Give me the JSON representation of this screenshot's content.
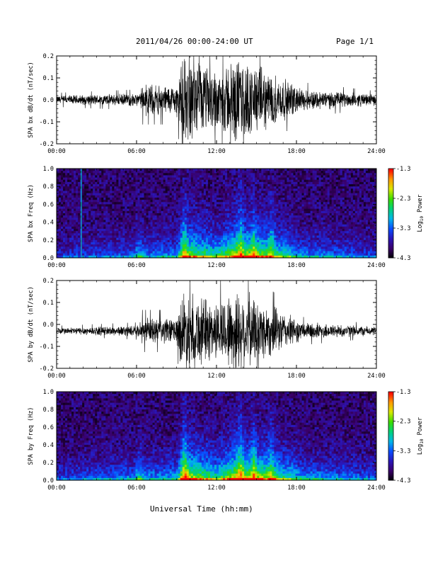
{
  "header": {
    "title": "2011/04/26  00:00-24:00 UT",
    "page_label": "Page 1/1"
  },
  "xlabel": "Universal Time (hh:mm)",
  "colorbar": {
    "label": "Log10 Power",
    "ticks": [
      "-1.3",
      "-2.3",
      "-3.3",
      "-4.3"
    ],
    "range": [
      -4.3,
      -1.3
    ],
    "colors": [
      "#000000",
      "#3a0068",
      "#2a16b8",
      "#0a4cff",
      "#00b6e8",
      "#00d27a",
      "#3cdc00",
      "#d8e800",
      "#ff9800",
      "#ff0000"
    ]
  },
  "chart_data": [
    {
      "type": "line",
      "ylabel": "SPA bx dB/dt (nT/sec)",
      "xlim": [
        "00:00",
        "24:00"
      ],
      "ylim": [
        -0.2,
        0.2
      ],
      "xticks": [
        "00:00",
        "06:00",
        "12:00",
        "18:00",
        "24:00"
      ],
      "yticks": [
        "0.2",
        "0.1",
        "0.0",
        "-0.1",
        "-0.2"
      ],
      "baseline": 0.0,
      "color": "#000000",
      "envelope": {
        "hours": [
          0,
          6.3,
          6.4,
          9,
          9.5,
          12,
          13.5,
          16,
          18.5,
          24
        ],
        "amplitude": [
          0.02,
          0.03,
          0.07,
          0.07,
          0.2,
          0.14,
          0.2,
          0.13,
          0.05,
          0.025
        ]
      }
    },
    {
      "type": "heatmap",
      "ylabel": "SPA bx Freq (Hz)",
      "xlim": [
        "00:00",
        "24:00"
      ],
      "ylim": [
        0,
        1.0
      ],
      "xticks": [
        "00:00",
        "06:00",
        "12:00",
        "18:00",
        "24:00"
      ],
      "yticks": [
        "1.0",
        "0.8",
        "0.6",
        "0.4",
        "0.2",
        "0.0"
      ],
      "value_range": [
        -4.3,
        -1.3
      ],
      "activity": {
        "hours": [
          0,
          6.3,
          9,
          9.5,
          12,
          13.5,
          16,
          18.5,
          24
        ],
        "level": [
          0.2,
          0.35,
          0.4,
          0.85,
          0.6,
          0.9,
          0.75,
          0.4,
          0.25
        ]
      },
      "features": [
        {
          "hour": 1.85,
          "type": "line"
        },
        {
          "hour": 6.2,
          "type": "burst"
        },
        {
          "hour": 9.6,
          "type": "burst"
        },
        {
          "hour": 13.8,
          "type": "burst"
        },
        {
          "hour": 14.8,
          "type": "burst"
        },
        {
          "hour": 16.1,
          "type": "burst"
        }
      ]
    },
    {
      "type": "line",
      "ylabel": "SPA by dB/dt (nT/sec)",
      "xlim": [
        "00:00",
        "24:00"
      ],
      "ylim": [
        -0.2,
        0.2
      ],
      "xticks": [
        "00:00",
        "06:00",
        "12:00",
        "18:00",
        "24:00"
      ],
      "yticks": [
        "0.2",
        "0.1",
        "0.0",
        "-0.1",
        "-0.2"
      ],
      "baseline": -0.03,
      "color": "#000000",
      "envelope": {
        "hours": [
          0,
          6.3,
          6.4,
          9,
          9.5,
          12,
          13.5,
          16,
          18.5,
          24
        ],
        "amplitude": [
          0.015,
          0.025,
          0.06,
          0.06,
          0.2,
          0.13,
          0.2,
          0.12,
          0.04,
          0.02
        ]
      }
    },
    {
      "type": "heatmap",
      "ylabel": "SPA by Freq (Hz)",
      "xlim": [
        "00:00",
        "24:00"
      ],
      "ylim": [
        0,
        1.0
      ],
      "xticks": [
        "00:00",
        "06:00",
        "12:00",
        "18:00",
        "24:00"
      ],
      "yticks": [
        "1.0",
        "0.8",
        "0.6",
        "0.4",
        "0.2",
        "0.0"
      ],
      "value_range": [
        -4.3,
        -1.3
      ],
      "activity": {
        "hours": [
          0,
          6.3,
          9,
          9.5,
          12,
          13.5,
          16,
          18.5,
          24
        ],
        "level": [
          0.25,
          0.4,
          0.45,
          0.95,
          0.65,
          0.95,
          0.8,
          0.45,
          0.3
        ]
      },
      "features": [
        {
          "hour": 6.2,
          "type": "burst"
        },
        {
          "hour": 9.6,
          "type": "burst"
        },
        {
          "hour": 13.8,
          "type": "burst"
        },
        {
          "hour": 14.8,
          "type": "burst"
        },
        {
          "hour": 16.1,
          "type": "burst"
        }
      ]
    }
  ]
}
